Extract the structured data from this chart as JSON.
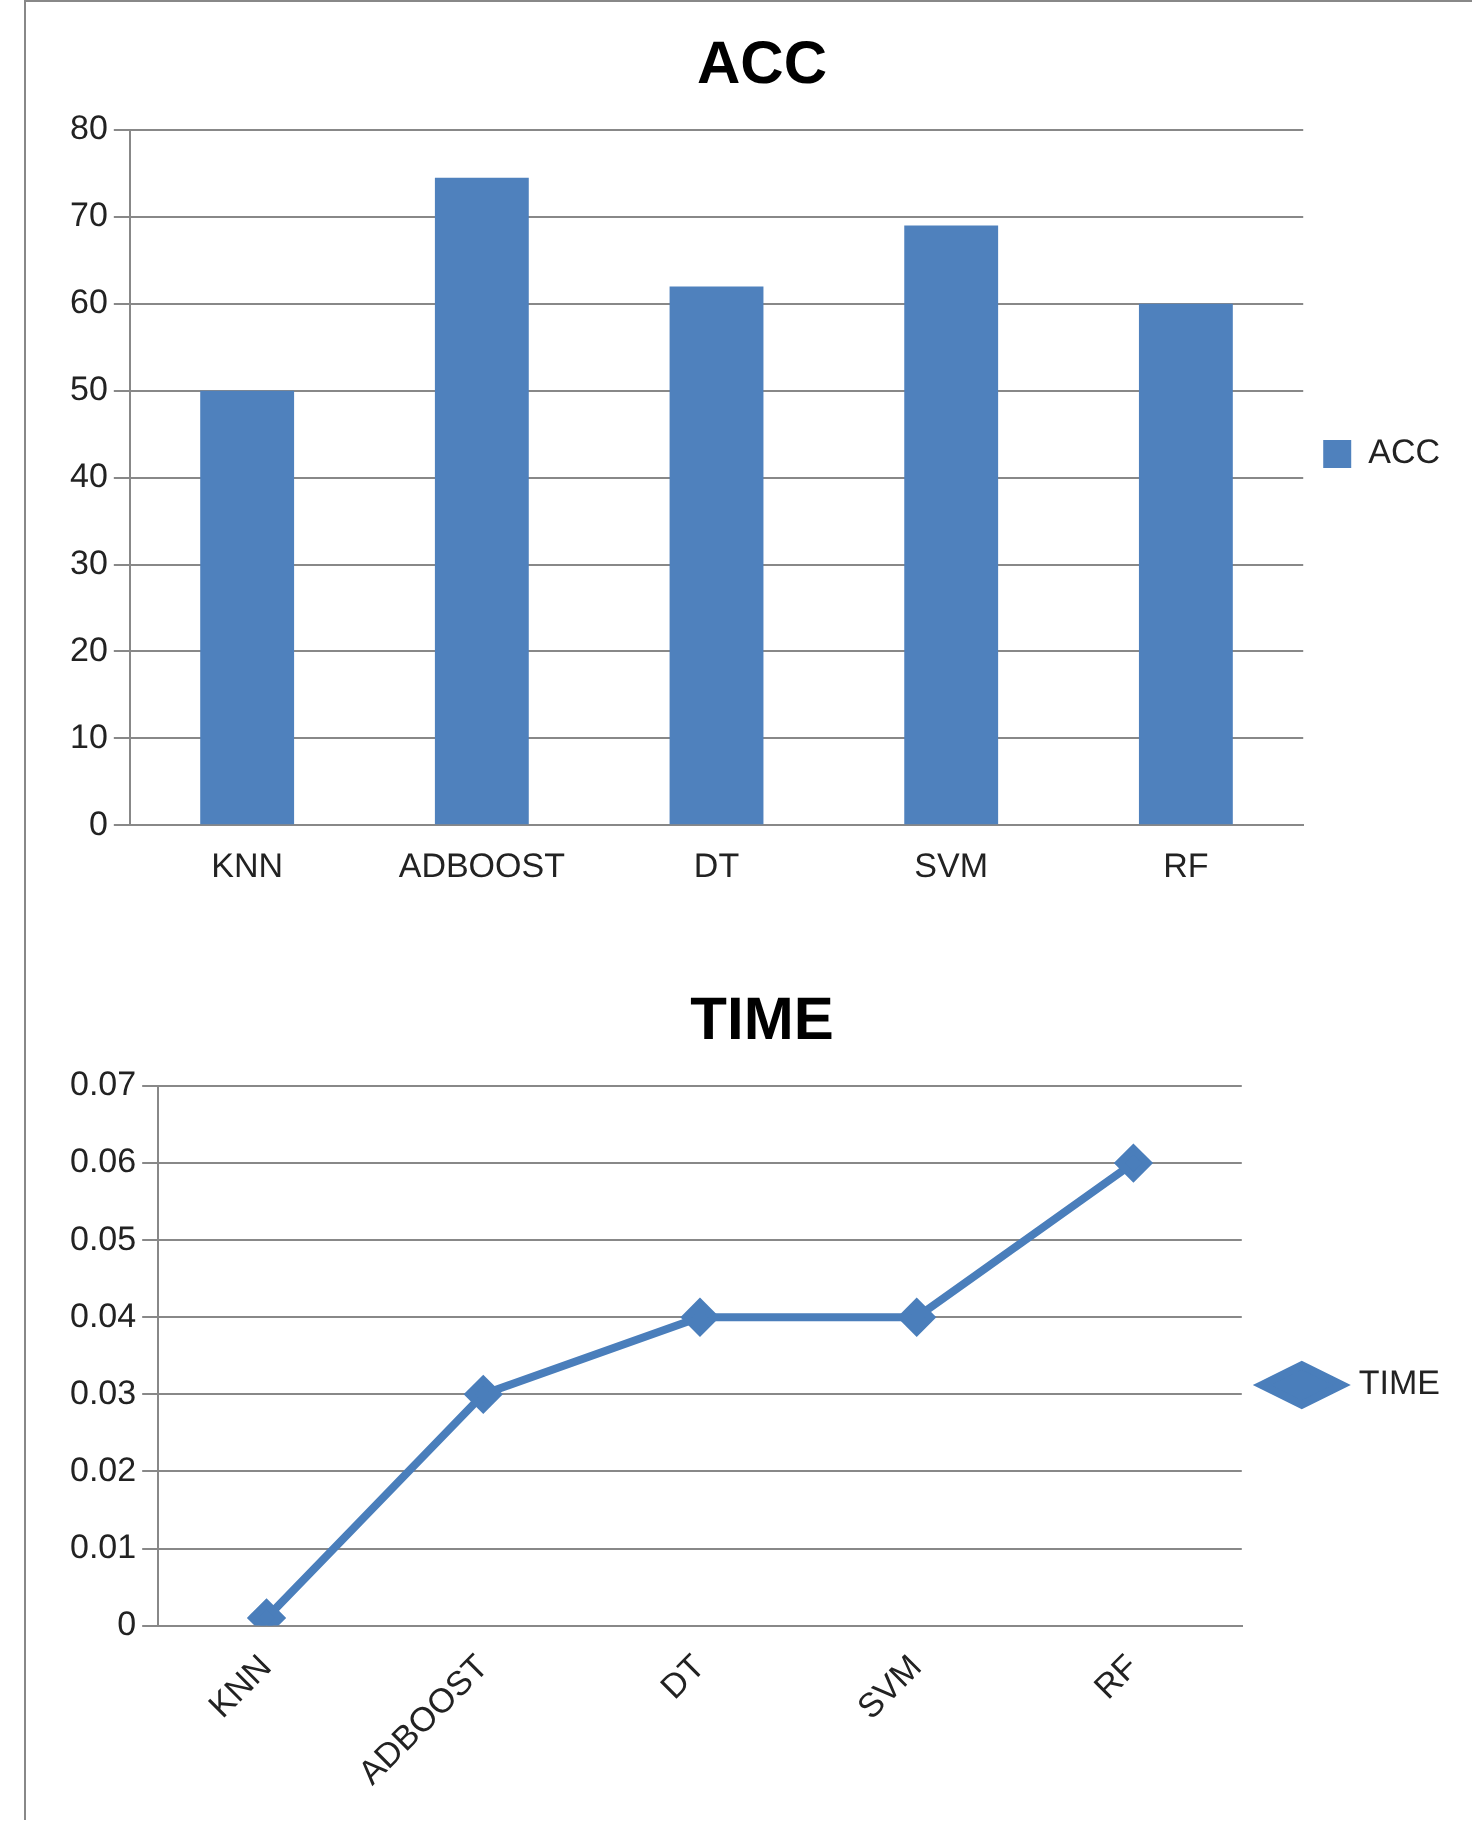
{
  "chart_data": [
    {
      "type": "bar",
      "title": "ACC",
      "categories": [
        "KNN",
        "ADBOOST",
        "DT",
        "SVM",
        "RF"
      ],
      "series": [
        {
          "name": "ACC",
          "color": "#4f81bd",
          "values": [
            50,
            74.5,
            62,
            69,
            60
          ]
        }
      ],
      "ylim": [
        0,
        80
      ],
      "yticks": [
        0,
        10,
        20,
        30,
        40,
        50,
        60,
        70,
        80
      ],
      "grid": "y",
      "legend": "right"
    },
    {
      "type": "line",
      "title": "TIME",
      "categories": [
        "KNN",
        "ADBOOST",
        "DT",
        "SVM",
        "RF"
      ],
      "series": [
        {
          "name": "TIME",
          "color": "#4a7ebb",
          "values": [
            0.001,
            0.03,
            0.04,
            0.04,
            0.06
          ]
        }
      ],
      "ylim": [
        0,
        0.07
      ],
      "yticks": [
        0,
        0.01,
        0.02,
        0.03,
        0.04,
        0.05,
        0.06,
        0.07
      ],
      "grid": "y",
      "legend": "right",
      "marker": "diamond",
      "line_style": "solid"
    }
  ]
}
